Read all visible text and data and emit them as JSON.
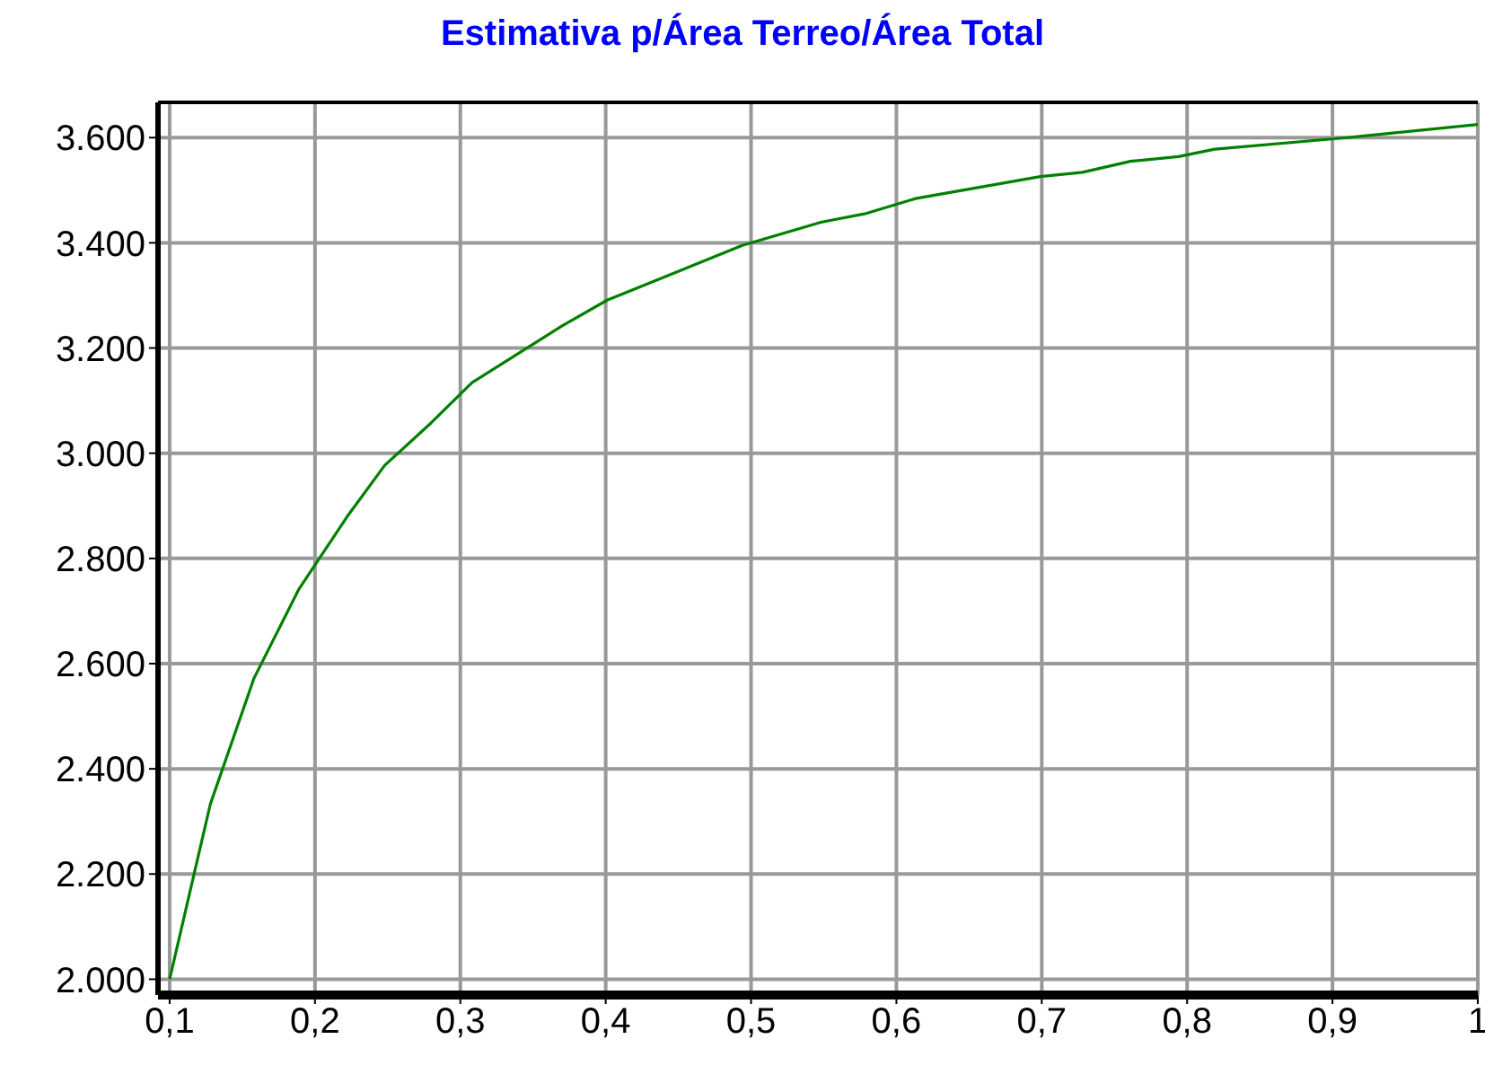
{
  "chart_data": {
    "type": "line",
    "title": "Estimativa p/Área Terreo/Área Total",
    "x": [
      0.1,
      0.128,
      0.158,
      0.189,
      0.222,
      0.248,
      0.28,
      0.308,
      0.37,
      0.401,
      0.494,
      0.548,
      0.578,
      0.613,
      0.699,
      0.728,
      0.761,
      0.794,
      0.819,
      0.91,
      1.0
    ],
    "series": [
      {
        "color": "#008000",
        "values": [
          2000,
          2333,
          2572,
          2742,
          2879,
          2977,
          3058,
          3134,
          3242,
          3291,
          3395,
          3439,
          3455,
          3484,
          3526,
          3534,
          3555,
          3564,
          3578,
          3600,
          3625
        ]
      }
    ],
    "xlim": [
      0.092,
      1.0
    ],
    "xticks": [
      {
        "value": 0.1,
        "label": "0,1"
      },
      {
        "value": 0.2,
        "label": "0,2"
      },
      {
        "value": 0.3,
        "label": "0,3"
      },
      {
        "value": 0.4,
        "label": "0,4"
      },
      {
        "value": 0.5,
        "label": "0,5"
      },
      {
        "value": 0.6,
        "label": "0,6"
      },
      {
        "value": 0.7,
        "label": "0,7"
      },
      {
        "value": 0.8,
        "label": "0,8"
      },
      {
        "value": 0.9,
        "label": "0,9"
      },
      {
        "value": 1,
        "label": "1"
      }
    ],
    "ylim": [
      1970,
      3667
    ],
    "yticks": [
      {
        "value": 2000,
        "label": "2.000"
      },
      {
        "value": 2200,
        "label": "2.200"
      },
      {
        "value": 2400,
        "label": "2.400"
      },
      {
        "value": 2600,
        "label": "2.600"
      },
      {
        "value": 2800,
        "label": "2.800"
      },
      {
        "value": 3000,
        "label": "3.000"
      },
      {
        "value": 3200,
        "label": "3.200"
      },
      {
        "value": 3400,
        "label": "3.400"
      },
      {
        "value": 3600,
        "label": "3.600"
      }
    ],
    "grid": true,
    "marker": "none",
    "line_style": "solid"
  }
}
